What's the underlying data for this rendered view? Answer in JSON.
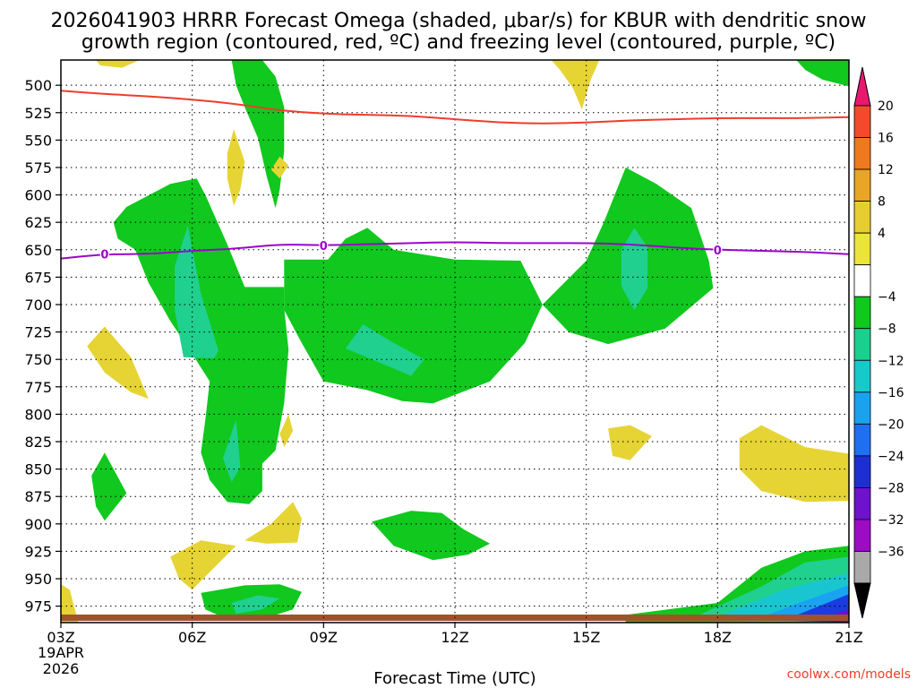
{
  "chart_data": {
    "type": "contour",
    "title_line1": "2026041903 HRRR Forecast Omega (shaded, μbar/s) for KBUR with dendritic snow",
    "title_line2": "growth region (contoured, red, ºC) and freezing level (contoured, purple, ºC)",
    "xlabel": "Forecast Time (UTC)",
    "x_ticks": [
      "03Z",
      "06Z",
      "09Z",
      "12Z",
      "15Z",
      "18Z",
      "21Z"
    ],
    "x_hours": [
      3,
      6,
      9,
      12,
      15,
      18,
      21
    ],
    "x_range": [
      3,
      21
    ],
    "start_date_line1": "19APR",
    "start_date_line2": "2026",
    "y_ticks": [
      "500",
      "525",
      "550",
      "575",
      "600",
      "625",
      "650",
      "675",
      "700",
      "725",
      "750",
      "775",
      "800",
      "825",
      "850",
      "875",
      "900",
      "925",
      "950",
      "975"
    ],
    "y_levels": [
      500,
      525,
      550,
      575,
      600,
      625,
      650,
      675,
      700,
      725,
      750,
      775,
      800,
      825,
      850,
      875,
      900,
      925,
      950,
      975
    ],
    "y_range_hpa": [
      477,
      990
    ],
    "grid": true,
    "colorbar": {
      "labels": [
        "20",
        "16",
        "12",
        "8",
        "4",
        "−4",
        "−8",
        "−12",
        "−16",
        "−20",
        "−24",
        "−28",
        "−32",
        "−36"
      ],
      "values": [
        20,
        16,
        12,
        8,
        4,
        -4,
        -8,
        -12,
        -16,
        -20,
        -24,
        -28,
        -32,
        -36
      ],
      "colors": [
        "#e8186f",
        "#f24a2a",
        "#ee7a1f",
        "#e8a526",
        "#e6ce30",
        "#ebe43a",
        "#ffffff",
        "#0fc91d",
        "#1bcf8f",
        "#18c9c9",
        "#1aa2ee",
        "#1f6ff0",
        "#1d2fd3",
        "#6e12cc",
        "#9c0cc4",
        "#a9a9a9",
        "#000000"
      ]
    },
    "freezing_level": {
      "color": "#9a06c9",
      "label": "0",
      "label_hours": [
        4,
        9,
        18
      ],
      "points": [
        [
          3,
          658
        ],
        [
          4,
          654
        ],
        [
          5,
          654
        ],
        [
          6,
          651
        ],
        [
          7,
          649
        ],
        [
          8,
          645
        ],
        [
          9,
          646
        ],
        [
          10,
          645
        ],
        [
          11,
          644
        ],
        [
          12,
          643
        ],
        [
          13,
          644
        ],
        [
          14,
          644
        ],
        [
          15,
          644
        ],
        [
          16,
          645
        ],
        [
          17,
          648
        ],
        [
          18,
          650
        ],
        [
          19,
          651
        ],
        [
          20,
          652
        ],
        [
          21,
          654
        ]
      ]
    },
    "dgz_top": {
      "color": "#ee3d2b",
      "points": [
        [
          3,
          505
        ],
        [
          4,
          508
        ],
        [
          5,
          510
        ],
        [
          6,
          513
        ],
        [
          7,
          517
        ],
        [
          8,
          523
        ],
        [
          9,
          526
        ],
        [
          10,
          527
        ],
        [
          11,
          528
        ],
        [
          12,
          531
        ],
        [
          13,
          534
        ],
        [
          14,
          535
        ],
        [
          15,
          534
        ],
        [
          16,
          532
        ],
        [
          17,
          531
        ],
        [
          18,
          530
        ],
        [
          19,
          530
        ],
        [
          20,
          530
        ],
        [
          21,
          529
        ]
      ]
    },
    "omega_regions": [
      {
        "class": "pos4",
        "points": [
          [
            3.8,
            477
          ],
          [
            4.8,
            477
          ],
          [
            4.4,
            484
          ],
          [
            3.9,
            482
          ]
        ]
      },
      {
        "class": "neg4",
        "points": [
          [
            6.9,
            477
          ],
          [
            7.6,
            477
          ],
          [
            7.9,
            492
          ],
          [
            8.1,
            520
          ],
          [
            8.1,
            560
          ],
          [
            8.0,
            595
          ],
          [
            7.9,
            612
          ],
          [
            7.7,
            583
          ],
          [
            7.5,
            548
          ],
          [
            7.2,
            520
          ],
          [
            7.0,
            500
          ]
        ]
      },
      {
        "class": "pos4",
        "points": [
          [
            14.2,
            477
          ],
          [
            15.3,
            477
          ],
          [
            15.1,
            495
          ],
          [
            14.9,
            522
          ],
          [
            14.7,
            503
          ],
          [
            14.4,
            486
          ]
        ]
      },
      {
        "class": "neg4",
        "points": [
          [
            19.8,
            477
          ],
          [
            21,
            477
          ],
          [
            21,
            501
          ],
          [
            20.4,
            495
          ],
          [
            20.0,
            486
          ]
        ]
      },
      {
        "class": "pos4",
        "points": [
          [
            7.8,
            577
          ],
          [
            8.0,
            565
          ],
          [
            8.2,
            573
          ],
          [
            8.0,
            585
          ]
        ]
      },
      {
        "class": "pos4",
        "points": [
          [
            6.8,
            562
          ],
          [
            6.95,
            540
          ],
          [
            7.2,
            570
          ],
          [
            7.1,
            595
          ],
          [
            6.95,
            610
          ],
          [
            6.8,
            585
          ]
        ]
      },
      {
        "class": "neg4",
        "points": [
          [
            4.2,
            625
          ],
          [
            4.5,
            611
          ],
          [
            5.5,
            590
          ],
          [
            6.1,
            585
          ],
          [
            6.3,
            600
          ],
          [
            6.8,
            645
          ],
          [
            7.2,
            684
          ],
          [
            8.1,
            684
          ],
          [
            8.1,
            703
          ],
          [
            8.2,
            741
          ],
          [
            8.1,
            790
          ],
          [
            7.9,
            833
          ],
          [
            7.6,
            845
          ],
          [
            7.6,
            870
          ],
          [
            7.3,
            882
          ],
          [
            6.8,
            880
          ],
          [
            6.4,
            860
          ],
          [
            6.2,
            835
          ],
          [
            6.3,
            805
          ],
          [
            6.4,
            770
          ],
          [
            6.0,
            745
          ],
          [
            5.5,
            715
          ],
          [
            5.0,
            680
          ],
          [
            4.7,
            650
          ],
          [
            4.3,
            640
          ]
        ]
      },
      {
        "class": "neg8",
        "points": [
          [
            5.6,
            665
          ],
          [
            5.9,
            628
          ],
          [
            6.2,
            690
          ],
          [
            6.6,
            742
          ],
          [
            6.5,
            749
          ],
          [
            5.8,
            748
          ],
          [
            5.6,
            705
          ]
        ]
      },
      {
        "class": "neg8",
        "points": [
          [
            6.7,
            840
          ],
          [
            7.0,
            805
          ],
          [
            7.1,
            848
          ],
          [
            6.9,
            862
          ]
        ]
      },
      {
        "class": "neg4",
        "points": [
          [
            8.1,
            659
          ],
          [
            9.1,
            659
          ],
          [
            9.5,
            640
          ],
          [
            10.0,
            630
          ],
          [
            10.6,
            650
          ],
          [
            12.0,
            659
          ],
          [
            13.5,
            660
          ],
          [
            14.0,
            700
          ],
          [
            13.6,
            735
          ],
          [
            12.8,
            770
          ],
          [
            11.5,
            790
          ],
          [
            10.8,
            788
          ],
          [
            10.0,
            778
          ],
          [
            9.0,
            770
          ],
          [
            8.5,
            735
          ],
          [
            8.1,
            705
          ]
        ]
      },
      {
        "class": "neg8",
        "points": [
          [
            9.5,
            740
          ],
          [
            9.9,
            718
          ],
          [
            10.6,
            735
          ],
          [
            11.3,
            750
          ],
          [
            11.0,
            765
          ],
          [
            10.4,
            755
          ]
        ]
      },
      {
        "class": "neg4",
        "points": [
          [
            14.0,
            700
          ],
          [
            15.0,
            660
          ],
          [
            15.4,
            625
          ],
          [
            15.9,
            575
          ],
          [
            16.6,
            590
          ],
          [
            17.4,
            612
          ],
          [
            17.8,
            660
          ],
          [
            17.9,
            685
          ],
          [
            16.8,
            722
          ],
          [
            15.5,
            736
          ],
          [
            14.6,
            725
          ]
        ]
      },
      {
        "class": "neg8",
        "points": [
          [
            15.8,
            650
          ],
          [
            16.1,
            630
          ],
          [
            16.4,
            648
          ],
          [
            16.4,
            685
          ],
          [
            16.1,
            705
          ],
          [
            15.8,
            683
          ]
        ]
      },
      {
        "class": "pos4",
        "points": [
          [
            3.6,
            738
          ],
          [
            4.0,
            720
          ],
          [
            4.6,
            748
          ],
          [
            5.0,
            786
          ],
          [
            4.6,
            780
          ],
          [
            4.0,
            762
          ]
        ]
      },
      {
        "class": "pos4",
        "points": [
          [
            8.0,
            818
          ],
          [
            8.2,
            800
          ],
          [
            8.3,
            815
          ],
          [
            8.1,
            830
          ]
        ]
      },
      {
        "class": "neg4",
        "points": [
          [
            3.7,
            856
          ],
          [
            4.0,
            835
          ],
          [
            4.5,
            872
          ],
          [
            4.0,
            897
          ],
          [
            3.8,
            884
          ]
        ]
      },
      {
        "class": "pos4",
        "points": [
          [
            15.5,
            813
          ],
          [
            16.0,
            810
          ],
          [
            16.5,
            820
          ],
          [
            16.0,
            842
          ],
          [
            15.6,
            838
          ]
        ]
      },
      {
        "class": "pos4",
        "points": [
          [
            18.5,
            822
          ],
          [
            19.0,
            810
          ],
          [
            20.0,
            830
          ],
          [
            21,
            836
          ],
          [
            21,
            879
          ],
          [
            20.0,
            880
          ],
          [
            19.0,
            870
          ],
          [
            18.5,
            850
          ]
        ]
      },
      {
        "class": "pos4",
        "points": [
          [
            5.5,
            930
          ],
          [
            6.2,
            915
          ],
          [
            7.0,
            920
          ],
          [
            6.5,
            940
          ],
          [
            6.0,
            960
          ],
          [
            5.7,
            950
          ]
        ]
      },
      {
        "class": "pos4",
        "points": [
          [
            7.2,
            915
          ],
          [
            7.8,
            900
          ],
          [
            8.3,
            880
          ],
          [
            8.5,
            895
          ],
          [
            8.4,
            917
          ],
          [
            7.7,
            918
          ]
        ]
      },
      {
        "class": "neg4",
        "points": [
          [
            10.1,
            898
          ],
          [
            11.0,
            888
          ],
          [
            11.7,
            890
          ],
          [
            12.2,
            905
          ],
          [
            12.8,
            918
          ],
          [
            12.3,
            928
          ],
          [
            11.5,
            933
          ],
          [
            10.6,
            920
          ]
        ]
      },
      {
        "class": "neg4",
        "points": [
          [
            6.2,
            963
          ],
          [
            7.2,
            956
          ],
          [
            8.0,
            955
          ],
          [
            8.5,
            962
          ],
          [
            8.3,
            978
          ],
          [
            7.6,
            987
          ],
          [
            6.8,
            987
          ],
          [
            6.3,
            978
          ]
        ]
      },
      {
        "class": "neg8",
        "points": [
          [
            6.9,
            972
          ],
          [
            7.5,
            965
          ],
          [
            8.0,
            968
          ],
          [
            7.6,
            978
          ],
          [
            7.0,
            982
          ]
        ]
      },
      {
        "class": "pos4",
        "points": [
          [
            3,
            955
          ],
          [
            3.2,
            960
          ],
          [
            3.4,
            990
          ],
          [
            3,
            990
          ]
        ]
      },
      {
        "class": "neg4",
        "points": [
          [
            15.9,
            983
          ],
          [
            18.0,
            972
          ],
          [
            19.0,
            940
          ],
          [
            20.0,
            925
          ],
          [
            21,
            920
          ],
          [
            21,
            990
          ],
          [
            15.9,
            990
          ]
        ]
      },
      {
        "class": "neg8",
        "points": [
          [
            17.3,
            988
          ],
          [
            19.0,
            957
          ],
          [
            20.0,
            935
          ],
          [
            21,
            930
          ],
          [
            21,
            990
          ]
        ]
      },
      {
        "class": "neg12",
        "points": [
          [
            17.8,
            988
          ],
          [
            19.5,
            960
          ],
          [
            21,
            945
          ],
          [
            21,
            990
          ]
        ]
      },
      {
        "class": "neg16",
        "points": [
          [
            18.8,
            988
          ],
          [
            20.0,
            970
          ],
          [
            21,
            956
          ],
          [
            21,
            990
          ]
        ]
      },
      {
        "class": "neg20",
        "points": [
          [
            19.5,
            988
          ],
          [
            21,
            964
          ],
          [
            21,
            990
          ]
        ]
      },
      {
        "class": "neg24",
        "points": [
          [
            20.2,
            988
          ],
          [
            21,
            978
          ],
          [
            21,
            990
          ]
        ]
      }
    ]
  },
  "credit": "coolwx.com/models"
}
